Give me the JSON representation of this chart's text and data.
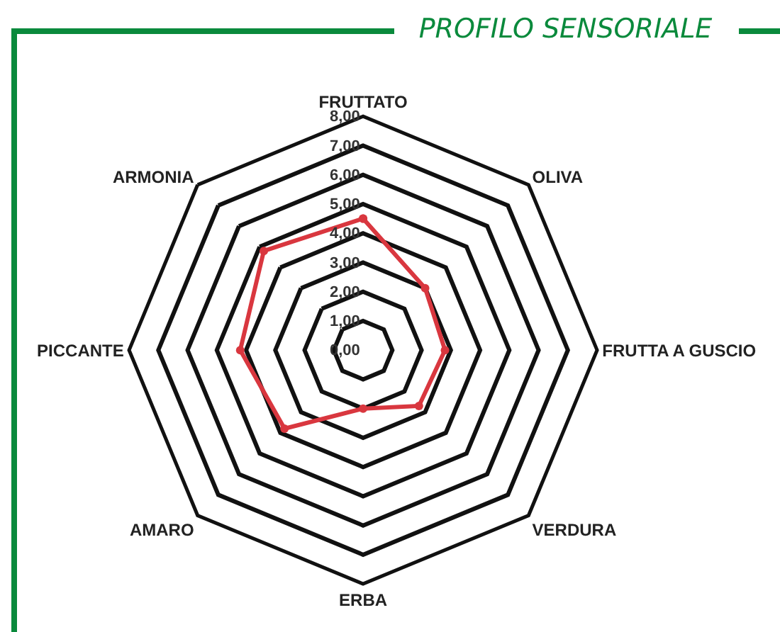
{
  "chart_data": {
    "type": "radar",
    "title": "PROFILO SENSORIALE",
    "categories": [
      "FRUTTATO",
      "OLIVA",
      "FRUTTA A GUSCIO",
      "VERDURA",
      "ERBA",
      "AMARO",
      "PICCANTE",
      "ARMONIA"
    ],
    "series": [
      {
        "color": "#d9373f",
        "values": [
          4.5,
          3.0,
          2.8,
          2.7,
          2.0,
          3.8,
          4.2,
          4.8
        ]
      }
    ],
    "ylim": [
      0,
      8
    ],
    "yticks": [
      {
        "value": 0,
        "label": "0,00"
      },
      {
        "value": 1,
        "label": "1,00"
      },
      {
        "value": 2,
        "label": "2,00"
      },
      {
        "value": 3,
        "label": "3,00"
      },
      {
        "value": 4,
        "label": "4,00"
      },
      {
        "value": 5,
        "label": "5,00"
      },
      {
        "value": 6,
        "label": "6,00"
      },
      {
        "value": 7,
        "label": "7,00"
      },
      {
        "value": 8,
        "label": "8,00"
      }
    ],
    "grid": true,
    "marker": "circle",
    "line_style": "solid",
    "legend": false
  }
}
